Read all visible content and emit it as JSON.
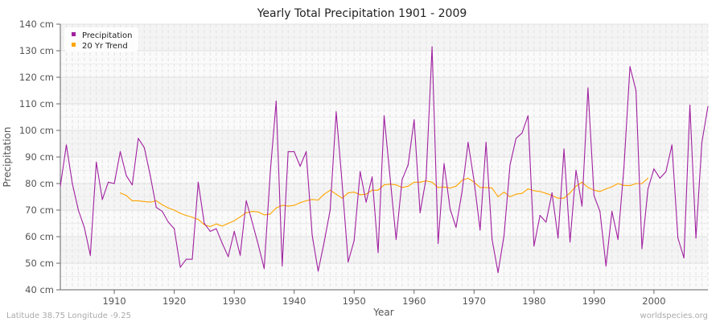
{
  "chart_data": {
    "type": "line",
    "title": "Yearly Total Precipitation 1901 - 2009",
    "xlabel": "Year",
    "ylabel": "Precipitation",
    "xlim": [
      1901,
      2009
    ],
    "ylim": [
      40,
      140
    ],
    "y_unit": "cm",
    "yticks": [
      40,
      50,
      60,
      70,
      80,
      90,
      100,
      110,
      120,
      130,
      140
    ],
    "ytick_labels": [
      "40 cm",
      "50 cm",
      "60 cm",
      "70 cm",
      "80 cm",
      "90 cm",
      "100 cm",
      "110 cm",
      "120 cm",
      "130 cm",
      "140 cm"
    ],
    "xticks": [
      1910,
      1920,
      1930,
      1940,
      1950,
      1960,
      1970,
      1980,
      1990,
      2000
    ],
    "xtick_labels": [
      "1910",
      "1920",
      "1930",
      "1940",
      "1950",
      "1960",
      "1970",
      "1980",
      "1990",
      "2000"
    ],
    "grid": true,
    "legend_position": "top-left",
    "series": [
      {
        "name": "Precipitation",
        "color": "#a020a0",
        "x_start": 1901,
        "values": [
          79,
          94.5,
          80,
          70,
          63.5,
          53,
          88,
          74,
          80.5,
          80,
          92,
          83,
          79.5,
          97,
          93.5,
          83,
          71,
          69.5,
          65.5,
          63,
          48.5,
          51.5,
          51.5,
          80.5,
          65,
          62,
          63,
          57.5,
          52.5,
          62,
          53,
          73.5,
          65.5,
          57,
          48,
          84,
          111,
          49,
          92,
          92,
          86.5,
          92,
          60.5,
          47,
          58,
          70,
          107,
          80,
          50.5,
          58.5,
          84.5,
          73,
          82.5,
          54,
          105.5,
          82,
          59,
          81.5,
          87,
          104,
          69,
          82,
          131.5,
          57.5,
          87.5,
          70.5,
          63.5,
          77,
          95.5,
          81,
          62.5,
          95.5,
          59,
          46.5,
          60.5,
          87,
          97,
          99,
          105.5,
          56.5,
          68,
          65.5,
          76.5,
          59.5,
          93,
          58,
          85,
          71.5,
          116,
          75.5,
          69.5,
          49,
          69.5,
          59,
          86,
          124,
          115,
          55.5,
          78,
          85.5,
          82,
          84.5,
          94.5,
          59.5,
          52,
          109.5,
          59.5,
          95.5,
          109
        ]
      },
      {
        "name": "20 Yr Trend",
        "color": "#ffa500",
        "x_start": 1911,
        "values": [
          76.5,
          75.5,
          73.5,
          73.5,
          73.2,
          73,
          73.5,
          72,
          70.8,
          70,
          68.8,
          68,
          67.3,
          66.5,
          64.5,
          63.8,
          64.8,
          64,
          65,
          66,
          67.5,
          69,
          69.5,
          69.3,
          68.2,
          68.5,
          70.8,
          71.8,
          71.5,
          71.8,
          72.8,
          73.5,
          74,
          73.8,
          76,
          77.5,
          76,
          74.5,
          76.5,
          76.8,
          75.8,
          76,
          77.5,
          77.5,
          79.5,
          79.8,
          79.5,
          78.5,
          79,
          80.5,
          80.5,
          81,
          80.5,
          78.5,
          78.7,
          78.3,
          79,
          81.2,
          82,
          80.5,
          78.5,
          78.5,
          78.3,
          75,
          76.8,
          75,
          76,
          76.3,
          78,
          77.3,
          77,
          76.3,
          75.5,
          74.5,
          74.5,
          76.5,
          79,
          80.5,
          78.5,
          77.5,
          77,
          78,
          78.8,
          80,
          79.3,
          79.2,
          80,
          80,
          82
        ]
      }
    ]
  },
  "footer": {
    "location": "Latitude 38.75 Longitude -9.25",
    "source": "worldspecies.org"
  }
}
